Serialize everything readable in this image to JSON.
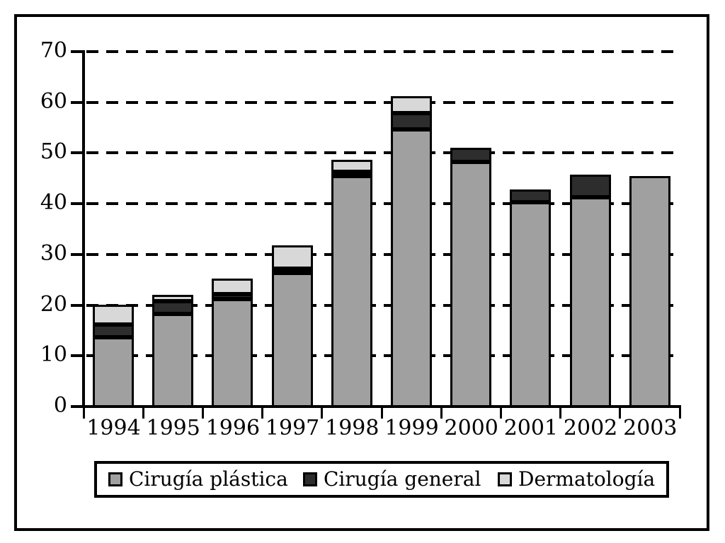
{
  "figure": {
    "background_color": "#ffffff",
    "frame_color": "#000000",
    "text_color": "#000000"
  },
  "chart_data": {
    "type": "bar",
    "stacked": true,
    "title": "",
    "xlabel": "",
    "ylabel": "",
    "categories": [
      "1994",
      "1995",
      "1996",
      "1997",
      "1998",
      "1999",
      "2000",
      "2001",
      "2002",
      "2003"
    ],
    "series": [
      {
        "name": "Cirugía plástica",
        "color": "#a0a0a0",
        "values": [
          14.0,
          18.5,
          21.5,
          26.6,
          45.7,
          55.0,
          48.5,
          40.6,
          41.5,
          45.8
        ]
      },
      {
        "name": "Cirugía general",
        "color": "#2d2d2d",
        "values": [
          2.5,
          2.6,
          1.0,
          0.9,
          0.9,
          3.2,
          2.8,
          2.5,
          4.5,
          0
        ]
      },
      {
        "name": "Dermatología",
        "color": "#d8d8d8",
        "values": [
          3.8,
          1.2,
          3.0,
          4.6,
          2.4,
          3.3,
          0,
          0,
          0,
          0
        ]
      }
    ],
    "totals": [
      20.3,
      22.3,
      25.5,
      32.1,
      49.0,
      61.5,
      51.3,
      43.1,
      46.0,
      45.8
    ],
    "ylim": [
      0,
      70
    ],
    "yticks": [
      0,
      10,
      20,
      30,
      40,
      50,
      60,
      70
    ],
    "grid": "horizontal-dashed",
    "legend_position": "bottom-boxed"
  }
}
